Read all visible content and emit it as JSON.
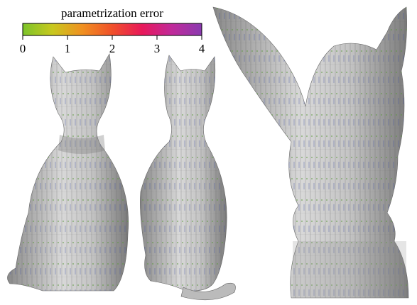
{
  "colorbar": {
    "title": "parametrization error",
    "range": [
      0,
      4
    ],
    "ticks": [
      0,
      1,
      2,
      3,
      4
    ],
    "colors": [
      "#7cc42a",
      "#c8c81e",
      "#f09020",
      "#f0502a",
      "#e8185a",
      "#c02a9a",
      "#8a3ab0"
    ]
  }
}
